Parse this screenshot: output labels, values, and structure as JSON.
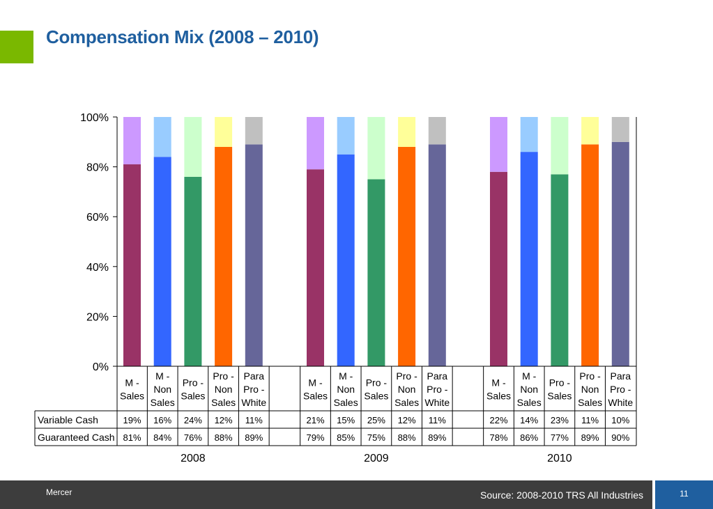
{
  "slide": {
    "title": "Compensation Mix (2008 – 2010)",
    "footer_brand": "Mercer",
    "footer_source": "Source:  2008-2010 TRS All Industries",
    "page_number": "11"
  },
  "colors": {
    "accent_green": "#7ab800",
    "title_blue": "#1f5f9f",
    "footer_bg": "#3d3d3d"
  },
  "chart_data": {
    "type": "bar",
    "stacked": true,
    "title": "",
    "xlabel": "",
    "ylabel": "",
    "ylim": [
      0,
      100
    ],
    "y_ticks": [
      "0%",
      "20%",
      "40%",
      "60%",
      "80%",
      "100%"
    ],
    "grid": false,
    "groups": [
      {
        "name": "2008",
        "categories": [
          "M - Sales",
          "M - Non Sales",
          "Pro - Sales",
          "Pro - Non Sales",
          "Para Pro - White"
        ]
      },
      {
        "name": "2009",
        "categories": [
          "M - Sales",
          "M - Non Sales",
          "Pro - Sales",
          "Pro - Non Sales",
          "Para Pro - White"
        ]
      },
      {
        "name": "2010",
        "categories": [
          "M - Sales",
          "M - Non Sales",
          "Pro - Sales",
          "Pro - Non Sales",
          "Para Pro - White"
        ]
      }
    ],
    "category_labels": [
      [
        "M -",
        "Sales"
      ],
      [
        "M -",
        "Non",
        "Sales"
      ],
      [
        "Pro -",
        "Sales"
      ],
      [
        "Pro -",
        "Non",
        "Sales"
      ],
      [
        "Para",
        "Pro -",
        "White"
      ]
    ],
    "series": [
      {
        "name": "Variable Cash",
        "values": [
          [
            19,
            16,
            24,
            12,
            11
          ],
          [
            21,
            15,
            25,
            12,
            11
          ],
          [
            22,
            14,
            23,
            11,
            10
          ]
        ],
        "labels": [
          [
            "19%",
            "16%",
            "24%",
            "12%",
            "11%"
          ],
          [
            "21%",
            "15%",
            "25%",
            "12%",
            "11%"
          ],
          [
            "22%",
            "14%",
            "23%",
            "11%",
            "10%"
          ]
        ]
      },
      {
        "name": "Guaranteed Cash",
        "values": [
          [
            81,
            84,
            76,
            88,
            89
          ],
          [
            79,
            85,
            75,
            88,
            89
          ],
          [
            78,
            86,
            77,
            89,
            90
          ]
        ],
        "labels": [
          [
            "81%",
            "84%",
            "76%",
            "88%",
            "89%"
          ],
          [
            "79%",
            "85%",
            "75%",
            "88%",
            "89%"
          ],
          [
            "78%",
            "86%",
            "77%",
            "89%",
            "90%"
          ]
        ]
      }
    ],
    "category_colors": {
      "guaranteed": [
        "#993366",
        "#3366ff",
        "#339966",
        "#ff6600",
        "#666699"
      ],
      "variable": [
        "#cc99ff",
        "#99ccff",
        "#ccffcc",
        "#ffff99",
        "#c0c0c0"
      ]
    }
  }
}
